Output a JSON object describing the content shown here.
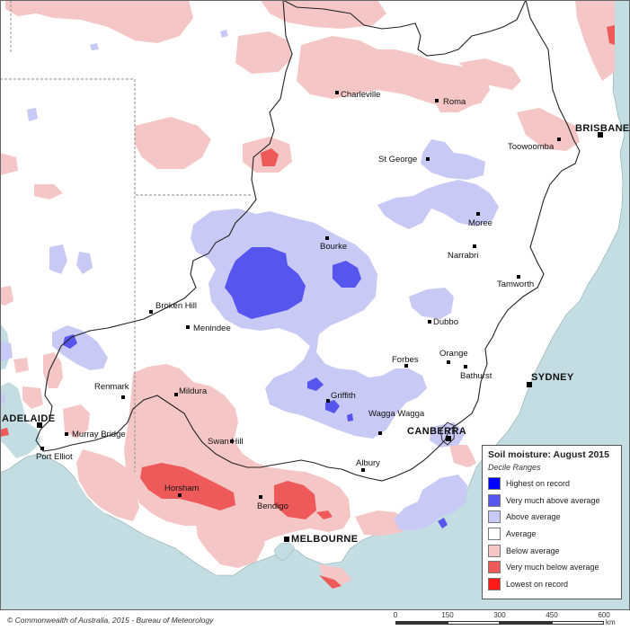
{
  "map": {
    "title": "Soil moisture: August 2015",
    "legend_subtitle": "Decile Ranges",
    "legend": [
      {
        "label": "Highest on record",
        "color": "#0000ff"
      },
      {
        "label": "Very much above average",
        "color": "#5656ee"
      },
      {
        "label": "Above average",
        "color": "#c9c9f5"
      },
      {
        "label": "Average",
        "color": "#ffffff"
      },
      {
        "label": "Below average",
        "color": "#f5c6c6"
      },
      {
        "label": "Very much below average",
        "color": "#ee5a5a"
      },
      {
        "label": "Lowest on record",
        "color": "#ff1a1a"
      }
    ],
    "colors": {
      "sea": "#c4dde3",
      "land": "#ffffff",
      "border": "#222222",
      "boundary_dash": "#888888"
    },
    "cities": {
      "charleville": "Charleville",
      "roma": "Roma",
      "brisbane": "BRISBANE",
      "toowoomba": "Toowoomba",
      "st_george": "St George",
      "moree": "Moree",
      "bourke": "Bourke",
      "narrabri": "Narrabri",
      "tamworth": "Tamworth",
      "broken_hill": "Broken Hill",
      "menindee": "Menindee",
      "dubbo": "Dubbo",
      "orange": "Orange",
      "forbes": "Forbes",
      "bathurst": "Bathurst",
      "sydney": "SYDNEY",
      "renmark": "Renmark",
      "mildura": "Mildura",
      "griffith": "Griffith",
      "wagga_wagga": "Wagga Wagga",
      "adelaide": "ADELAIDE",
      "murray_bridge": "Murray Bridge",
      "canberra": "CANBERRA",
      "swan_hill": "Swan Hill",
      "port_elliot": "Port Elliot",
      "albury": "Albury",
      "horsham": "Horsham",
      "bendigo": "Bendigo",
      "melbourne": "MELBOURNE"
    },
    "copyright": "© Commonwealth of Australia, 2015 - Bureau of Meteorology",
    "scale": {
      "ticks": [
        "0",
        "150",
        "300",
        "450",
        "600"
      ],
      "unit": "km"
    }
  }
}
